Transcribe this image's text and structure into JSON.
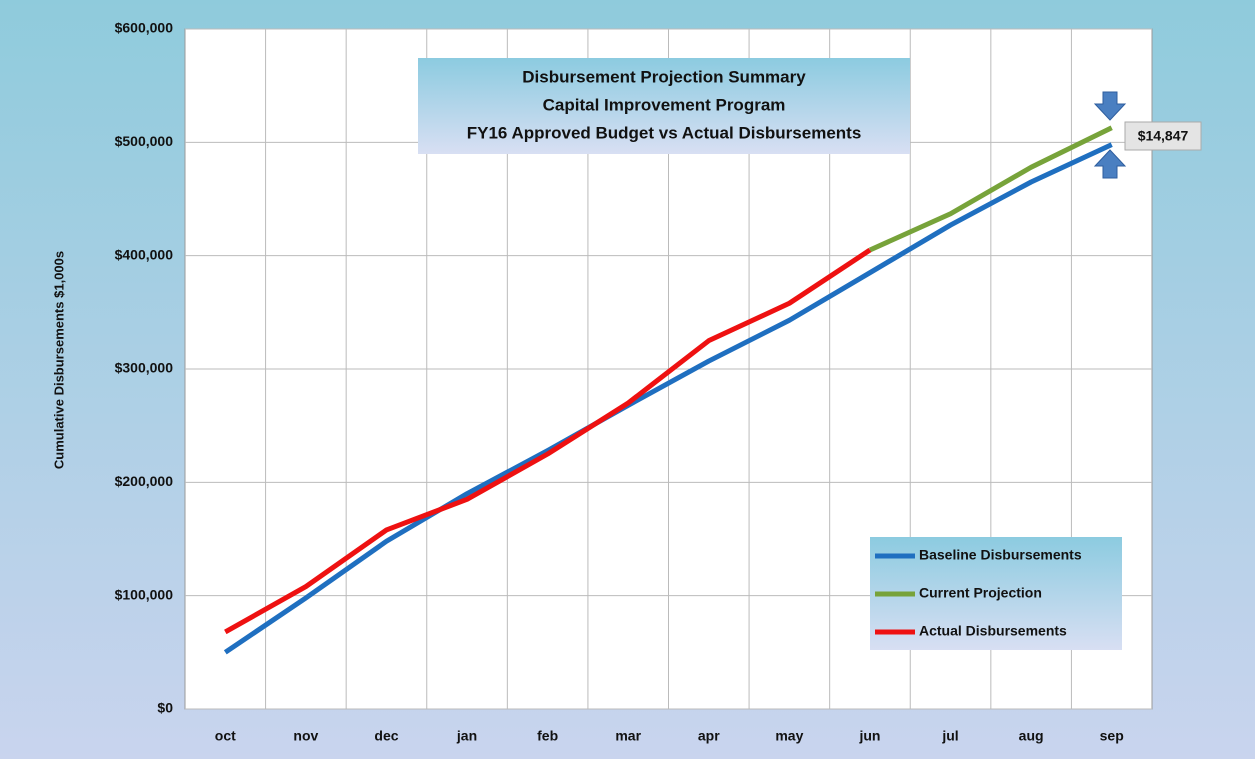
{
  "chart_data": {
    "type": "line",
    "title": [
      "Disbursement Projection Summary",
      "Capital Improvement Program",
      "FY16 Approved Budget vs Actual Disbursements"
    ],
    "y_label": "Cumulative Disbursements $1,000s",
    "categories": [
      "oct",
      "nov",
      "dec",
      "jan",
      "feb",
      "mar",
      "apr",
      "may",
      "jun",
      "jul",
      "aug",
      "sep"
    ],
    "series": [
      {
        "name": "Baseline Disbursements",
        "color": "#1f6fc0",
        "values": [
          50000,
          98000,
          148000,
          190000,
          228000,
          268000,
          307000,
          343000,
          385000,
          427000,
          465000,
          498000
        ]
      },
      {
        "name": "Current Projection",
        "color": "#77a33a",
        "values": [
          null,
          null,
          null,
          null,
          null,
          null,
          null,
          null,
          405000,
          437000,
          478000,
          512847
        ]
      },
      {
        "name": "Actual Disbursements",
        "color": "#ee1111",
        "values": [
          68000,
          108000,
          158000,
          185000,
          225000,
          270000,
          325000,
          358000,
          405000,
          null,
          null,
          null
        ]
      }
    ],
    "annotation": "$14,847",
    "ylim": [
      0,
      600000
    ],
    "yticks": [
      {
        "value": 0,
        "label": "$0"
      },
      {
        "value": 100000,
        "label": "$100,000"
      },
      {
        "value": 200000,
        "label": "$200,000"
      },
      {
        "value": 300000,
        "label": "$300,000"
      },
      {
        "value": 400000,
        "label": "$400,000"
      },
      {
        "value": 500000,
        "label": "$500,000"
      },
      {
        "value": 600000,
        "label": "$600,000"
      }
    ],
    "grid": true,
    "legend": "lower right"
  }
}
